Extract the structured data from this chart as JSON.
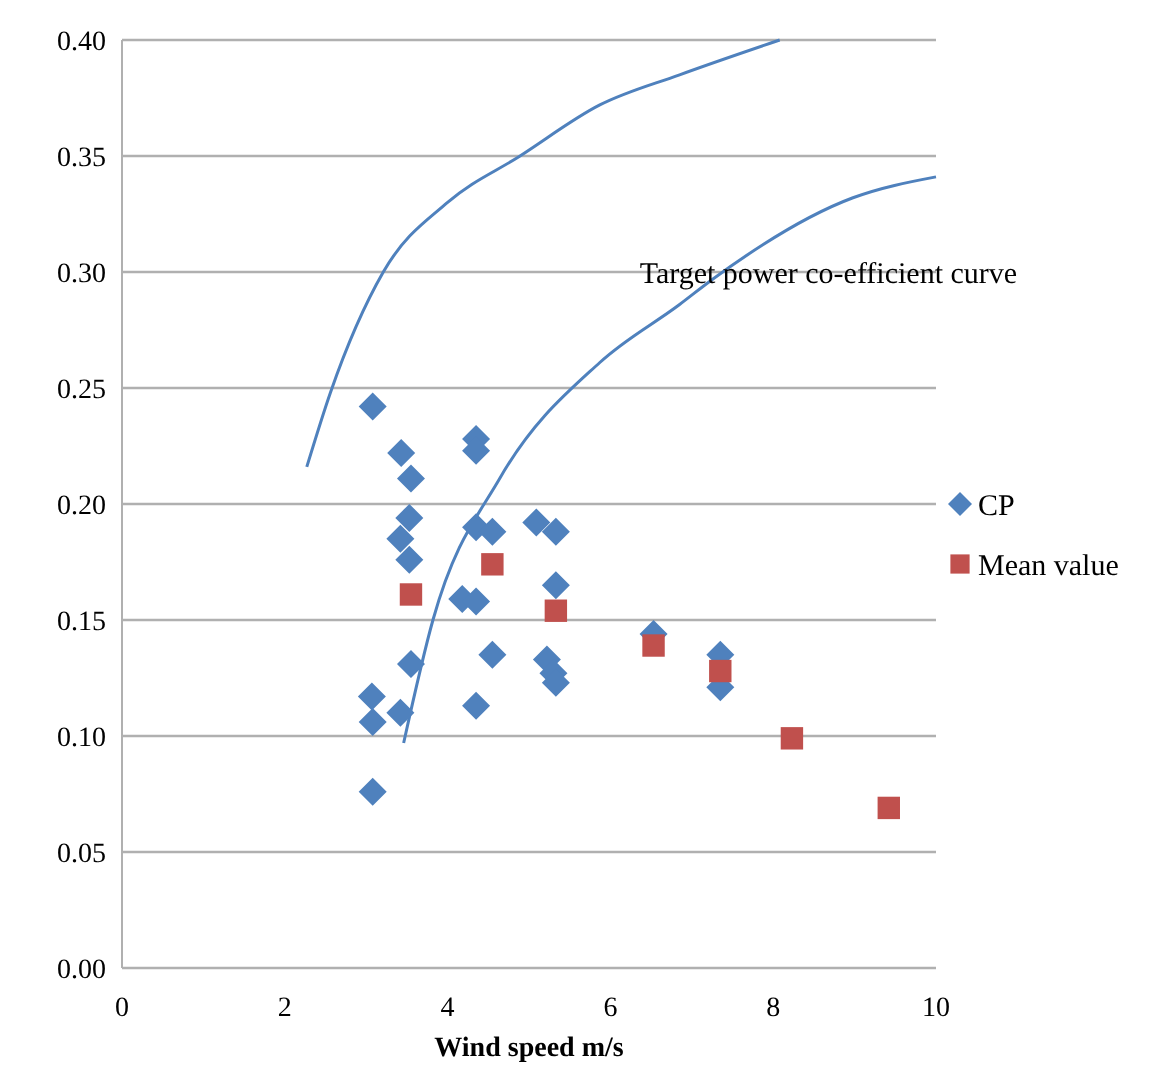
{
  "chart_data": {
    "type": "scatter",
    "xlabel": "Wind speed m/s",
    "xlim": [
      0,
      10
    ],
    "ylim": [
      0,
      0.4
    ],
    "xticks": [
      0,
      2,
      4,
      6,
      8,
      10
    ],
    "yticks": [
      {
        "value": 0,
        "label": "0.00"
      },
      {
        "value": 0.05,
        "label": "0.05"
      },
      {
        "value": 0.1,
        "label": "0.10"
      },
      {
        "value": 0.15,
        "label": "0.15"
      },
      {
        "value": 0.2,
        "label": "0.20"
      },
      {
        "value": 0.25,
        "label": "0.25"
      },
      {
        "value": 0.3,
        "label": "0.30"
      },
      {
        "value": 0.35,
        "label": "0.35"
      },
      {
        "value": 0.4,
        "label": "0.40"
      }
    ],
    "grid": "y",
    "legend": "right",
    "series": [
      {
        "type": "line",
        "color": "#4f81bd",
        "marker": "none",
        "x": [
          2.27,
          2.56,
          3.21,
          4.0,
          4.89,
          5.87,
          6.85,
          8.08
        ],
        "values": [
          0.216,
          0.248,
          0.3,
          0.33,
          0.35,
          0.372,
          0.385,
          0.4
        ]
      },
      {
        "type": "line",
        "color": "#4f81bd",
        "marker": "none",
        "x": [
          3.46,
          3.82,
          4.64,
          5.87,
          6.85,
          7.26,
          8.98,
          10
        ],
        "values": [
          0.097,
          0.15,
          0.211,
          0.261,
          0.286,
          0.297,
          0.332,
          0.341
        ]
      },
      {
        "name": "CP",
        "color": "#4f81bd",
        "marker": "diamond",
        "x": [
          3.08,
          3.43,
          3.55,
          4.35,
          4.35,
          3.53,
          3.42,
          3.53,
          3.55,
          3.07,
          3.08,
          3.42,
          3.08,
          4.35,
          4.55,
          4.18,
          4.35,
          4.55,
          4.35,
          5.09,
          5.33,
          5.33,
          5.22,
          5.3,
          5.33,
          6.53,
          7.35,
          7.35
        ],
        "values": [
          0.242,
          0.222,
          0.211,
          0.228,
          0.223,
          0.194,
          0.185,
          0.176,
          0.131,
          0.117,
          0.106,
          0.11,
          0.076,
          0.19,
          0.188,
          0.159,
          0.158,
          0.135,
          0.113,
          0.192,
          0.188,
          0.165,
          0.133,
          0.127,
          0.123,
          0.144,
          0.135,
          0.121
        ]
      },
      {
        "name": "Mean value",
        "color": "#c0504d",
        "marker": "square",
        "x": [
          3.55,
          4.55,
          5.33,
          6.53,
          7.35,
          8.23,
          9.42
        ],
        "values": [
          0.161,
          0.174,
          0.154,
          0.139,
          0.128,
          0.099,
          0.069
        ]
      }
    ],
    "annotations": [
      "Target power co-efficient curve"
    ]
  }
}
